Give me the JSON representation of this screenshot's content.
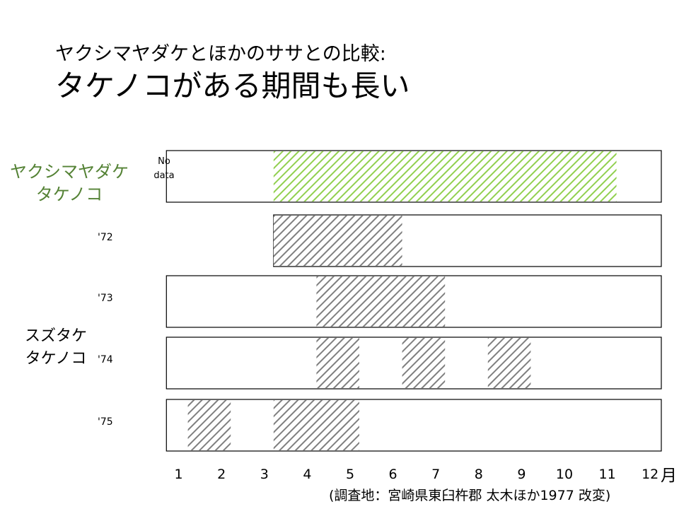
{
  "slide": {
    "title_line1": "ヤクシマヤダケとほかのササとの比較:",
    "title_line2": "タケノコがある期間も長い"
  },
  "groups": {
    "yakushima": "ヤクシマヤダケ\nタケノコ",
    "suzutake": "スズタケ\nタケノコ"
  },
  "no_data_label": "No\ndata",
  "month_unit": "月",
  "source_note": "(調査地：宮崎県東臼杵郡 太木ほか1977 改変)",
  "colors": {
    "yakushima_hatch": "#92d050",
    "suzutake_hatch": "#808080",
    "yakushima_label": "#548235",
    "frame": "#000000"
  },
  "chart_data": {
    "type": "bar",
    "orientation": "horizontal-range",
    "x_unit": "月",
    "x_ticks": [
      "1",
      "2",
      "3",
      "4",
      "5",
      "6",
      "7",
      "8",
      "9",
      "10",
      "11",
      "12"
    ],
    "series": [
      {
        "name": "ヤクシマヤダケ",
        "row_label": "",
        "record_start": 1,
        "shoot_periods": [
          [
            3.5,
            11.5
          ]
        ]
      },
      {
        "name": "スズタケ",
        "row_label": "'72",
        "record_start": 3.5,
        "shoot_periods": [
          [
            3.5,
            6.5
          ]
        ]
      },
      {
        "name": "スズタケ",
        "row_label": "'73",
        "record_start": 1,
        "shoot_periods": [
          [
            4.5,
            7.5
          ]
        ]
      },
      {
        "name": "スズタケ",
        "row_label": "'74",
        "record_start": 1,
        "shoot_periods": [
          [
            4.5,
            5.5
          ],
          [
            6.5,
            7.5
          ],
          [
            8.5,
            9.5
          ]
        ]
      },
      {
        "name": "スズタケ",
        "row_label": "'75",
        "record_start": 1,
        "shoot_periods": [
          [
            1.5,
            2.5
          ],
          [
            3.5,
            5.5
          ]
        ]
      }
    ]
  }
}
